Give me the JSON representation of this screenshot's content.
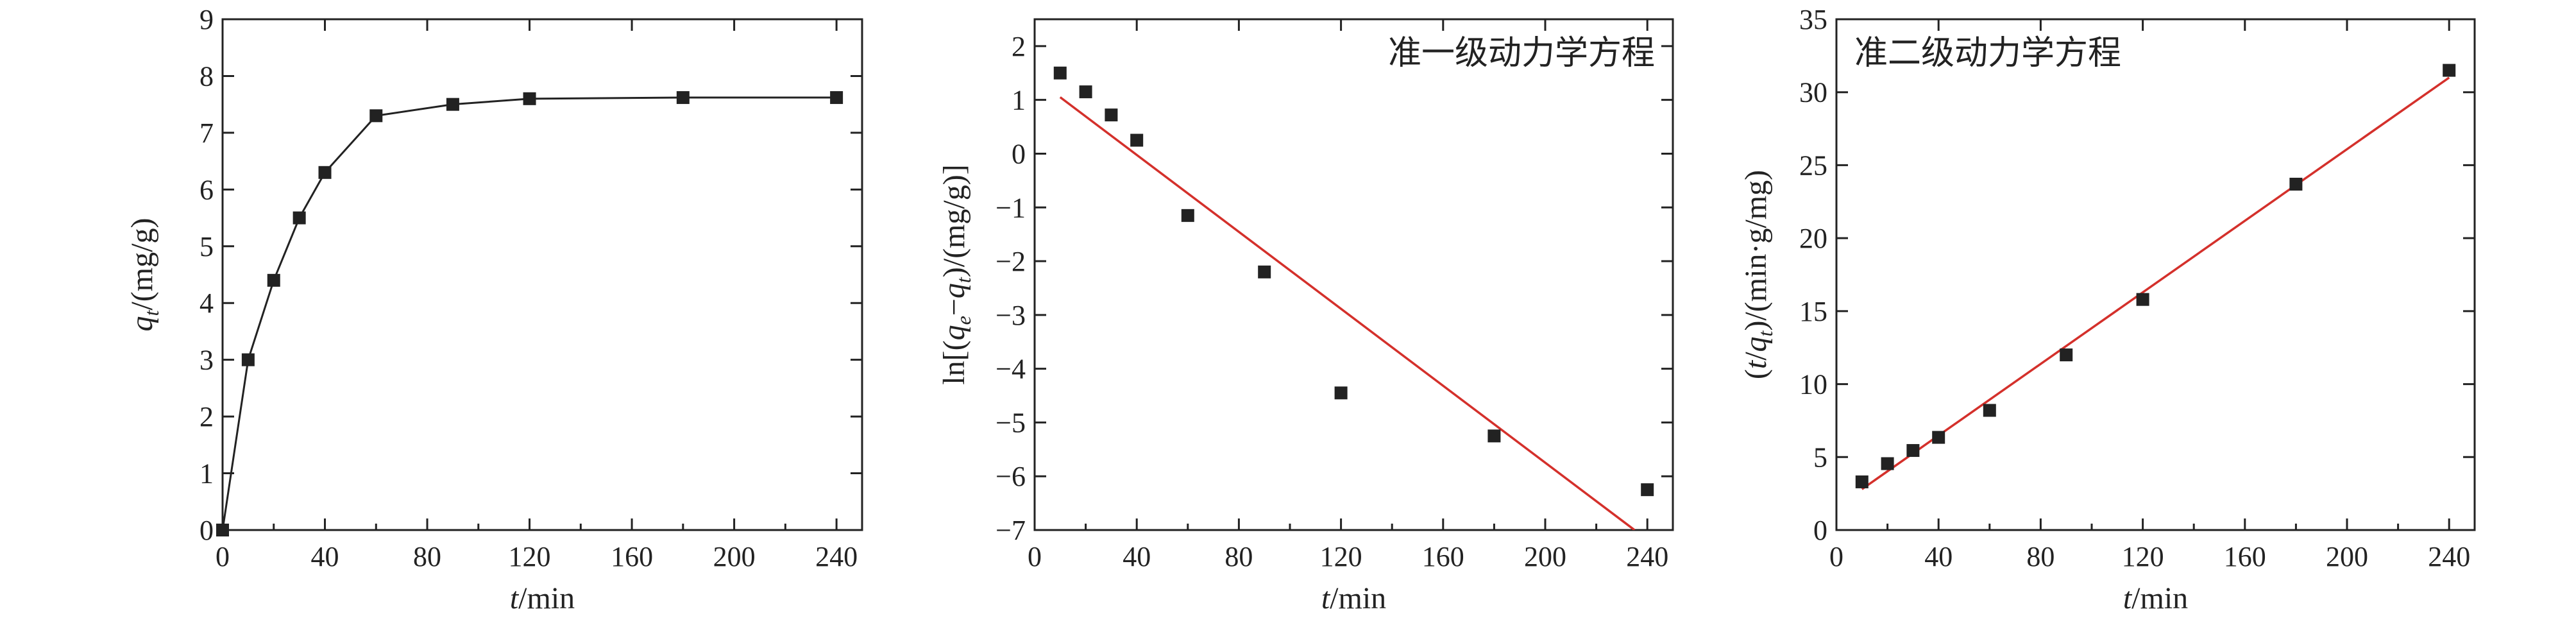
{
  "chart_data": [
    {
      "type": "line",
      "title": "",
      "xlabel": "t/min",
      "ylabel": "q_t/(mg/g)",
      "xlim": [
        0,
        250
      ],
      "ylim": [
        0,
        9
      ],
      "xticks": [
        0,
        40,
        80,
        120,
        160,
        200,
        240
      ],
      "yticks": [
        0,
        1,
        2,
        3,
        4,
        5,
        6,
        7,
        8,
        9
      ],
      "x": [
        0,
        10,
        20,
        30,
        40,
        60,
        90,
        120,
        180,
        240
      ],
      "series": [
        {
          "values": [
            0,
            3.0,
            4.4,
            5.5,
            6.3,
            7.3,
            7.5,
            7.6,
            7.62,
            7.62
          ],
          "marker": "square",
          "connected": true
        }
      ]
    },
    {
      "type": "scatter",
      "title": "准一级动力学方程",
      "xlabel": "t/min",
      "ylabel": "ln[(q_e−q_t)/(mg/g)]",
      "xlim": [
        0,
        250
      ],
      "ylim": [
        -7,
        2.5
      ],
      "xticks": [
        0,
        40,
        80,
        120,
        160,
        200,
        240
      ],
      "yticks": [
        -7,
        -6,
        -5,
        -4,
        -3,
        -2,
        -1,
        0,
        1,
        2
      ],
      "x": [
        10,
        20,
        30,
        40,
        60,
        90,
        120,
        180,
        240
      ],
      "series": [
        {
          "values": [
            1.5,
            1.15,
            0.72,
            0.25,
            -1.15,
            -2.2,
            -4.45,
            -5.25,
            -6.25
          ],
          "marker": "square"
        }
      ],
      "fit_line": {
        "color": "#d4302b",
        "x": [
          10,
          235
        ],
        "y": [
          1.05,
          -7.0
        ]
      }
    },
    {
      "type": "scatter",
      "title": "准二级动力学方程",
      "xlabel": "t/min",
      "ylabel": "(t/q_t)/(min·g/mg)",
      "xlim": [
        0,
        250
      ],
      "ylim": [
        0,
        35
      ],
      "xticks": [
        0,
        40,
        80,
        120,
        160,
        200,
        240
      ],
      "yticks": [
        0,
        5,
        10,
        15,
        20,
        25,
        30,
        35
      ],
      "x": [
        10,
        20,
        30,
        40,
        60,
        90,
        120,
        180,
        240
      ],
      "series": [
        {
          "values": [
            3.3,
            4.55,
            5.45,
            6.35,
            8.2,
            12.0,
            15.8,
            23.7,
            31.5
          ],
          "marker": "square"
        }
      ],
      "fit_line": {
        "color": "#d4302b",
        "x": [
          10,
          240
        ],
        "y": [
          2.8,
          31.0
        ]
      }
    }
  ]
}
